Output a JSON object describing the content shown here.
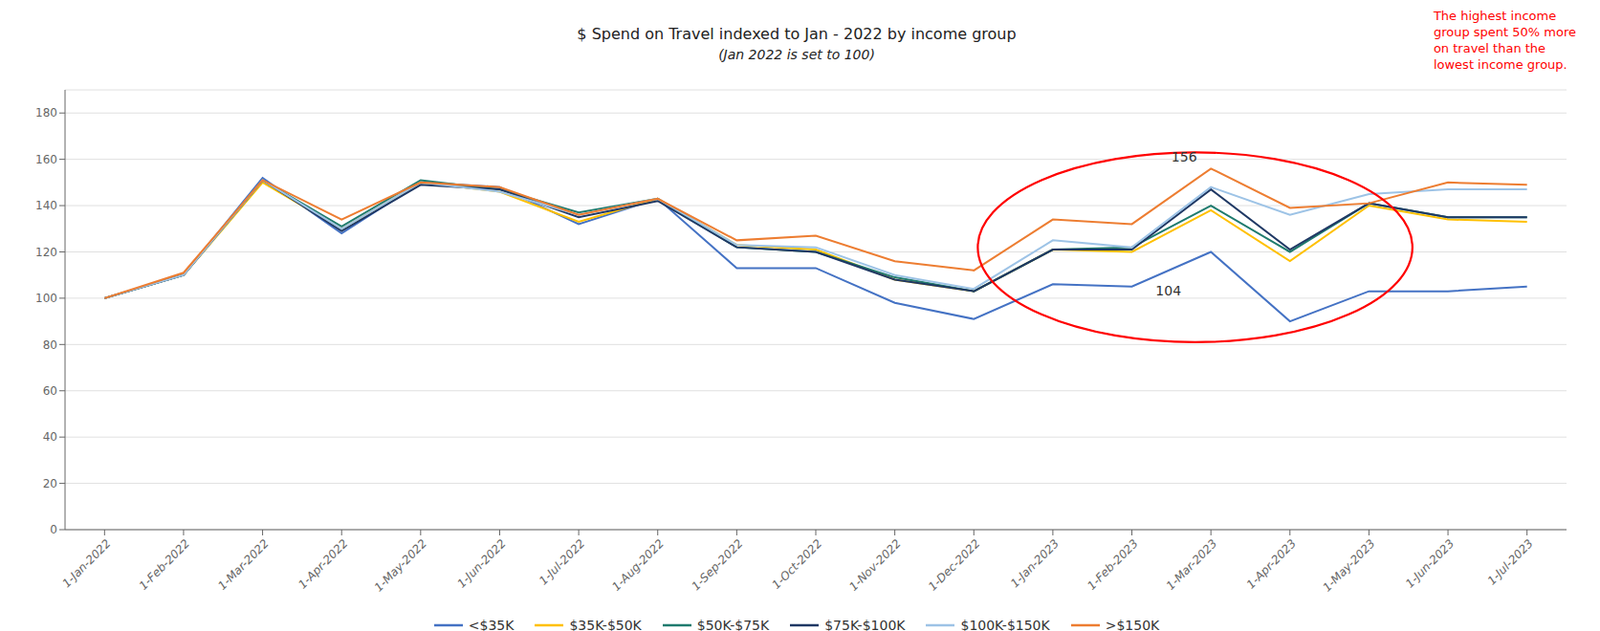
{
  "chart_data": {
    "type": "line",
    "title": "$ Spend on Travel indexed to Jan - 2022 by income group",
    "subtitle": "(Jan 2022 is set to 100)",
    "categories": [
      "1-Jan-2022",
      "1-Feb-2022",
      "1-Mar-2022",
      "1-Apr-2022",
      "1-May-2022",
      "1-Jun-2022",
      "1-Jul-2022",
      "1-Aug-2022",
      "1-Sep-2022",
      "1-Oct-2022",
      "1-Nov-2022",
      "1-Dec-2022",
      "1-Jan-2023",
      "1-Feb-2023",
      "1-Mar-2023",
      "1-Apr-2023",
      "1-May-2023",
      "1-Jun-2023",
      "1-Jul-2023"
    ],
    "series": [
      {
        "name": "<$35K",
        "color": "#4472C4",
        "values": [
          100,
          110,
          152,
          128,
          150,
          148,
          132,
          143,
          113,
          113,
          98,
          91,
          106,
          105,
          120,
          90,
          103,
          103,
          105
        ]
      },
      {
        "name": "$35K-$50K",
        "color": "#FFC000",
        "values": [
          100,
          110,
          150,
          130,
          150,
          146,
          133,
          143,
          123,
          121,
          108,
          103,
          121,
          120,
          138,
          116,
          140,
          134,
          133
        ]
      },
      {
        "name": "$50K-$75K",
        "color": "#1F7B6E",
        "values": [
          100,
          110,
          151,
          131,
          151,
          147,
          137,
          143,
          122,
          120,
          109,
          103,
          121,
          122,
          140,
          120,
          141,
          135,
          135
        ]
      },
      {
        "name": "$75K-$100K",
        "color": "#1F3864",
        "values": [
          100,
          110,
          151,
          129,
          149,
          147,
          135,
          142,
          122,
          120,
          108,
          103,
          121,
          121,
          147,
          121,
          141,
          135,
          135
        ]
      },
      {
        "name": "$100K-$150K",
        "color": "#9DC3E6",
        "values": [
          100,
          110,
          151,
          130,
          150,
          146,
          136,
          143,
          123,
          122,
          110,
          104,
          125,
          122,
          148,
          136,
          145,
          147,
          147
        ]
      },
      {
        "name": ">$150K",
        "color": "#ED7D31",
        "values": [
          100,
          111,
          151,
          134,
          150,
          148,
          136,
          143,
          125,
          127,
          116,
          112,
          134,
          132,
          156,
          139,
          141,
          150,
          149
        ]
      }
    ],
    "ylim": [
      0,
      190
    ],
    "yticks": [
      0,
      20,
      40,
      60,
      80,
      100,
      120,
      140,
      160,
      180
    ],
    "grid": true,
    "legend": "bottom",
    "annotations": [
      "156",
      "104",
      "The highest income\ngroup spent 50% more\non travel than the\nlowest income group."
    ]
  }
}
